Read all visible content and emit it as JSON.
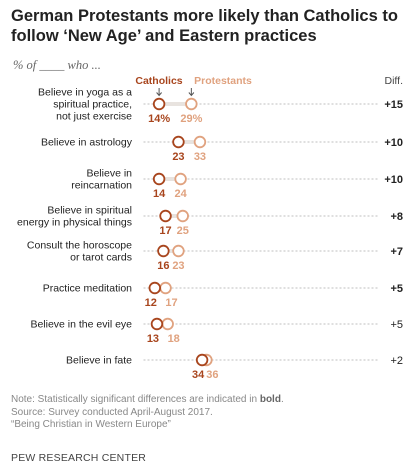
{
  "title": "German Protestants more likely than Catholics to follow ‘New Age’ and Eastern practices",
  "subtitle": "% of ____ who ...",
  "diff_header": "Diff.",
  "legend": {
    "catholics": "Catholics",
    "protestants": "Protestants"
  },
  "colors": {
    "catholics": "#a8451d",
    "protestants": "#e0a27f",
    "dots": "#cccccc"
  },
  "chart_data": {
    "type": "dot",
    "series": [
      {
        "name": "Catholics",
        "values": [
          14,
          23,
          14,
          17,
          16,
          12,
          13,
          34
        ]
      },
      {
        "name": "Protestants",
        "values": [
          29,
          33,
          24,
          25,
          23,
          17,
          18,
          36
        ]
      }
    ],
    "categories": [
      "Believe in yoga as a spiritual practice, not just exercise",
      "Believe in astrology",
      "Believe in reincarnation",
      "Believe in spiritual energy in physical things",
      "Consult the horoscope or tarot cards",
      "Practice meditation",
      "Believe in the evil eye",
      "Believe in fate"
    ],
    "rows": [
      {
        "label": [
          "Believe in yoga as a",
          "spiritual practice,",
          "not just exercise"
        ],
        "catholics": 14,
        "protestants": 29,
        "diff": "+15",
        "significant": true
      },
      {
        "label": [
          "Believe in astrology"
        ],
        "catholics": 23,
        "protestants": 33,
        "diff": "+10",
        "significant": true
      },
      {
        "label": [
          "Believe in",
          "reincarnation"
        ],
        "catholics": 14,
        "protestants": 24,
        "diff": "+10",
        "significant": true
      },
      {
        "label": [
          "Believe in spiritual",
          "energy in physical things"
        ],
        "catholics": 17,
        "protestants": 25,
        "diff": "+8",
        "significant": true
      },
      {
        "label": [
          "Consult the horoscope",
          "or tarot cards"
        ],
        "catholics": 16,
        "protestants": 23,
        "diff": "+7",
        "significant": true
      },
      {
        "label": [
          "Practice meditation"
        ],
        "catholics": 12,
        "protestants": 17,
        "diff": "+5",
        "significant": true
      },
      {
        "label": [
          "Believe in the evil eye"
        ],
        "catholics": 13,
        "protestants": 18,
        "diff": "+5",
        "significant": false
      },
      {
        "label": [
          "Believe in fate"
        ],
        "catholics": 34,
        "protestants": 36,
        "diff": "+2",
        "significant": false
      }
    ]
  },
  "notes": {
    "note_prefix": "Note: Statistically significant differences are indicated in ",
    "note_bold": "bold",
    "note_suffix": ".",
    "source": "Source: Survey conducted April-August 2017.",
    "report": "“Being Christian in Western Europe”"
  },
  "footer": "PEW RESEARCH CENTER"
}
